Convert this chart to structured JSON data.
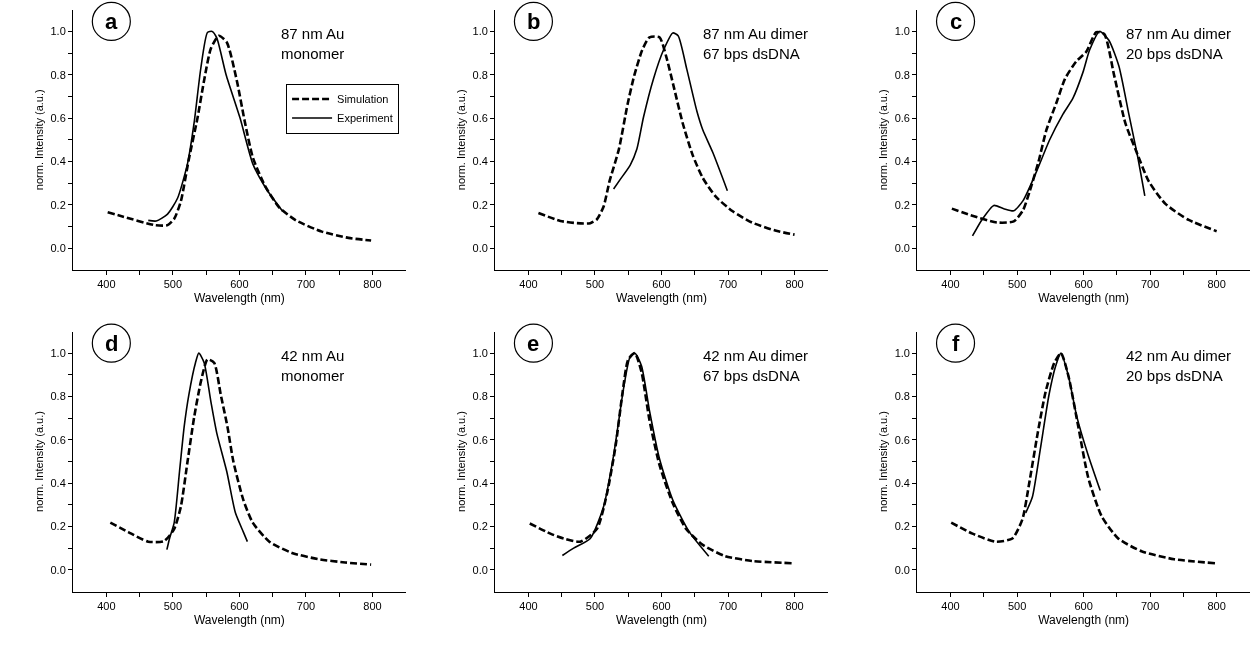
{
  "chart_data": [
    {
      "type": "line",
      "title": "a",
      "annotations": [
        "87 nm Au\nmonomer"
      ],
      "xlabel": "Wavelength (nm)",
      "ylabel": "norm. Intensity (a.u.)",
      "xlim": [
        350,
        850
      ],
      "ylim": [
        -0.1,
        1.1
      ],
      "xticks": [
        400,
        {
          "value": 450,
          "label": null
        },
        500,
        {
          "value": 550,
          "label": null
        },
        600,
        {
          "value": 650,
          "label": null
        },
        700,
        {
          "value": 750,
          "label": null
        },
        800
      ],
      "yticks": [
        {
          "value": 0,
          "label": "0.0"
        },
        {
          "value": 0.1,
          "label": null
        },
        {
          "value": 0.2,
          "label": "0.2"
        },
        {
          "value": 0.3,
          "label": null
        },
        {
          "value": 0.4,
          "label": "0.4"
        },
        {
          "value": 0.5,
          "label": null
        },
        {
          "value": 0.6,
          "label": "0.6"
        },
        {
          "value": 0.7,
          "label": null
        },
        {
          "value": 0.8,
          "label": "0.8"
        },
        {
          "value": 0.9,
          "label": null
        },
        {
          "value": 1.0,
          "label": "1.0"
        }
      ],
      "grid": false,
      "legend": "right",
      "series": [
        {
          "name": "Simulation",
          "color": "#000000",
          "line_style": "dashed",
          "x": [
            402,
            423,
            473,
            492,
            502,
            512,
            524,
            537,
            547,
            557,
            569,
            581,
            596,
            608,
            620,
            638,
            660,
            685,
            724,
            764,
            798
          ],
          "values": [
            0.165,
            0.147,
            0.106,
            0.106,
            0.135,
            0.216,
            0.41,
            0.6,
            0.775,
            0.92,
            0.98,
            0.95,
            0.775,
            0.585,
            0.42,
            0.29,
            0.187,
            0.128,
            0.076,
            0.047,
            0.035
          ]
        },
        {
          "name": "Experiment",
          "color": "#000000",
          "line_style": "solid",
          "x": [
            463,
            475,
            492,
            507,
            522,
            532,
            542,
            552,
            559,
            566,
            580,
            601,
            620,
            640,
            665
          ],
          "values": [
            0.128,
            0.125,
            0.157,
            0.23,
            0.39,
            0.58,
            0.83,
            0.995,
            1.0,
            0.97,
            0.8,
            0.6,
            0.39,
            0.275,
            0.17
          ]
        }
      ]
    },
    {
      "type": "line",
      "title": "b",
      "annotations": [
        "87 nm Au dimer\n67 bps dsDNA"
      ],
      "xlabel": "Wavelength (nm)",
      "ylabel": "norm. Intensity (a.u.)",
      "xlim": [
        350,
        850
      ],
      "ylim": [
        -0.1,
        1.1
      ],
      "xticks": [
        400,
        {
          "value": 450,
          "label": null
        },
        500,
        {
          "value": 550,
          "label": null
        },
        600,
        {
          "value": 650,
          "label": null
        },
        700,
        {
          "value": 750,
          "label": null
        },
        800
      ],
      "yticks": [
        {
          "value": 0,
          "label": "0.0"
        },
        {
          "value": 0.1,
          "label": null
        },
        {
          "value": 0.2,
          "label": "0.2"
        },
        {
          "value": 0.3,
          "label": null
        },
        {
          "value": 0.4,
          "label": "0.4"
        },
        {
          "value": 0.5,
          "label": null
        },
        {
          "value": 0.6,
          "label": "0.6"
        },
        {
          "value": 0.7,
          "label": null
        },
        {
          "value": 0.8,
          "label": "0.8"
        },
        {
          "value": 0.9,
          "label": null
        },
        {
          "value": 1.0,
          "label": "1.0"
        }
      ],
      "grid": false,
      "series": [
        {
          "color": "#000000",
          "line_style": "dashed",
          "x": [
            415,
            448,
            473,
            493,
            503,
            513,
            522,
            536,
            549,
            559,
            571,
            582,
            597,
            607,
            619,
            632,
            647,
            662,
            682,
            707,
            736,
            771,
            800
          ],
          "values": [
            0.162,
            0.125,
            0.115,
            0.115,
            0.133,
            0.192,
            0.31,
            0.457,
            0.664,
            0.796,
            0.914,
            0.973,
            0.973,
            0.885,
            0.737,
            0.575,
            0.428,
            0.324,
            0.236,
            0.17,
            0.118,
            0.081,
            0.062
          ]
        },
        {
          "color": "#000000",
          "line_style": "solid",
          "x": [
            528,
            538,
            553,
            563,
            573,
            588,
            603,
            617,
            625,
            638,
            653,
            662,
            677,
            699
          ],
          "values": [
            0.273,
            0.317,
            0.383,
            0.457,
            0.605,
            0.782,
            0.914,
            0.993,
            0.98,
            0.826,
            0.634,
            0.546,
            0.442,
            0.265
          ]
        }
      ]
    },
    {
      "type": "line",
      "title": "c",
      "annotations": [
        "87 nm Au dimer\n20 bps dsDNA"
      ],
      "xlabel": "Wavelength (nm)",
      "ylabel": "norm. Intensity (a.u.)",
      "xlim": [
        350,
        850
      ],
      "ylim": [
        -0.1,
        1.1
      ],
      "xticks": [
        400,
        {
          "value": 450,
          "label": null
        },
        500,
        {
          "value": 550,
          "label": null
        },
        600,
        {
          "value": 650,
          "label": null
        },
        700,
        {
          "value": 750,
          "label": null
        },
        800
      ],
      "yticks": [
        {
          "value": 0,
          "label": "0.0"
        },
        {
          "value": 0.1,
          "label": null
        },
        {
          "value": 0.2,
          "label": "0.2"
        },
        {
          "value": 0.3,
          "label": null
        },
        {
          "value": 0.4,
          "label": "0.4"
        },
        {
          "value": 0.5,
          "label": null
        },
        {
          "value": 0.6,
          "label": "0.6"
        },
        {
          "value": 0.7,
          "label": null
        },
        {
          "value": 0.8,
          "label": "0.8"
        },
        {
          "value": 0.9,
          "label": null
        },
        {
          "value": 1.0,
          "label": "1.0"
        }
      ],
      "grid": false,
      "series": [
        {
          "color": "#000000",
          "line_style": "dashed",
          "x": [
            402,
            430,
            470,
            495,
            509,
            519,
            532,
            544,
            560,
            572,
            589,
            604,
            619,
            631,
            646,
            663,
            678,
            698,
            723,
            758,
            800
          ],
          "values": [
            0.182,
            0.152,
            0.118,
            0.123,
            0.175,
            0.263,
            0.396,
            0.544,
            0.678,
            0.781,
            0.862,
            0.906,
            0.996,
            0.988,
            0.796,
            0.574,
            0.456,
            0.308,
            0.204,
            0.13,
            0.078
          ]
        },
        {
          "color": "#000000",
          "line_style": "solid",
          "x": [
            433,
            447,
            465,
            480,
            495,
            509,
            529,
            549,
            569,
            584,
            599,
            609,
            624,
            638,
            653,
            668,
            681,
            692
          ],
          "values": [
            0.056,
            0.13,
            0.197,
            0.182,
            0.172,
            0.219,
            0.352,
            0.5,
            0.618,
            0.692,
            0.811,
            0.914,
            1.0,
            0.959,
            0.84,
            0.618,
            0.426,
            0.241
          ]
        }
      ]
    },
    {
      "type": "line",
      "title": "d",
      "annotations": [
        "42 nm Au\nmonomer"
      ],
      "xlabel": "Wavelength (nm)",
      "ylabel": "norm. Intensity (a.u.)",
      "xlim": [
        350,
        850
      ],
      "ylim": [
        -0.1,
        1.1
      ],
      "xticks": [
        400,
        {
          "value": 450,
          "label": null
        },
        500,
        {
          "value": 550,
          "label": null
        },
        600,
        {
          "value": 650,
          "label": null
        },
        700,
        {
          "value": 750,
          "label": null
        },
        800
      ],
      "yticks": [
        {
          "value": 0,
          "label": "0.0"
        },
        {
          "value": 0.1,
          "label": null
        },
        {
          "value": 0.2,
          "label": "0.2"
        },
        {
          "value": 0.3,
          "label": null
        },
        {
          "value": 0.4,
          "label": "0.4"
        },
        {
          "value": 0.5,
          "label": null
        },
        {
          "value": 0.6,
          "label": "0.6"
        },
        {
          "value": 0.7,
          "label": null
        },
        {
          "value": 0.8,
          "label": "0.8"
        },
        {
          "value": 0.9,
          "label": null
        },
        {
          "value": 1.0,
          "label": "1.0"
        }
      ],
      "grid": false,
      "series": [
        {
          "color": "#000000",
          "line_style": "dashed",
          "x": [
            406,
            433,
            463,
            487,
            502,
            512,
            522,
            532,
            542,
            552,
            562,
            572,
            582,
            591,
            606,
            620,
            645,
            679,
            719,
            759,
            798
          ],
          "values": [
            0.218,
            0.174,
            0.13,
            0.133,
            0.189,
            0.292,
            0.499,
            0.705,
            0.867,
            0.971,
            0.956,
            0.808,
            0.661,
            0.499,
            0.322,
            0.218,
            0.13,
            0.078,
            0.049,
            0.034,
            0.024
          ]
        },
        {
          "color": "#000000",
          "line_style": "solid",
          "x": [
            491,
            495,
            502,
            510,
            517,
            524,
            534,
            539,
            547,
            557,
            566,
            581,
            594,
            606,
            612
          ],
          "values": [
            0.093,
            0.145,
            0.218,
            0.454,
            0.661,
            0.808,
            0.956,
            1.0,
            0.956,
            0.779,
            0.631,
            0.454,
            0.263,
            0.174,
            0.13
          ]
        }
      ]
    },
    {
      "type": "line",
      "title": "e",
      "annotations": [
        "42 nm Au dimer\n67 bps dsDNA"
      ],
      "xlabel": "Wavelength (nm)",
      "ylabel": "norm. Intensity (a.u.)",
      "xlim": [
        350,
        850
      ],
      "ylim": [
        -0.1,
        1.1
      ],
      "xticks": [
        400,
        {
          "value": 450,
          "label": null
        },
        500,
        {
          "value": 550,
          "label": null
        },
        600,
        {
          "value": 650,
          "label": null
        },
        700,
        {
          "value": 750,
          "label": null
        },
        800
      ],
      "yticks": [
        {
          "value": 0,
          "label": "0.0"
        },
        {
          "value": 0.1,
          "label": null
        },
        {
          "value": 0.2,
          "label": "0.2"
        },
        {
          "value": 0.3,
          "label": null
        },
        {
          "value": 0.4,
          "label": "0.4"
        },
        {
          "value": 0.5,
          "label": null
        },
        {
          "value": 0.6,
          "label": "0.6"
        },
        {
          "value": 0.7,
          "label": null
        },
        {
          "value": 0.8,
          "label": "0.8"
        },
        {
          "value": 0.9,
          "label": null
        },
        {
          "value": 1.0,
          "label": "1.0"
        }
      ],
      "grid": false,
      "series": [
        {
          "color": "#000000",
          "line_style": "dashed",
          "x": [
            402,
            433,
            453,
            478,
            503,
            518,
            531,
            541,
            550,
            560,
            570,
            582,
            597,
            617,
            637,
            662,
            696,
            736,
            800
          ],
          "values": [
            0.214,
            0.167,
            0.145,
            0.13,
            0.189,
            0.351,
            0.572,
            0.808,
            0.971,
            1.0,
            0.912,
            0.69,
            0.484,
            0.307,
            0.189,
            0.115,
            0.063,
            0.041,
            0.03
          ]
        },
        {
          "color": "#000000",
          "line_style": "solid",
          "x": [
            451,
            468,
            493,
            513,
            528,
            543,
            553,
            560,
            570,
            582,
            597,
            617,
            642,
            671
          ],
          "values": [
            0.066,
            0.1,
            0.145,
            0.292,
            0.528,
            0.838,
            0.985,
            1.0,
            0.941,
            0.734,
            0.513,
            0.322,
            0.174,
            0.063
          ]
        }
      ]
    },
    {
      "type": "line",
      "title": "f",
      "annotations": [
        "42 nm Au dimer\n20 bps dsDNA"
      ],
      "xlabel": "Wavelength (nm)",
      "ylabel": "norm. Intensity (a.u.)",
      "xlim": [
        350,
        850
      ],
      "ylim": [
        -0.1,
        1.1
      ],
      "xticks": [
        400,
        {
          "value": 450,
          "label": null
        },
        500,
        {
          "value": 550,
          "label": null
        },
        600,
        {
          "value": 650,
          "label": null
        },
        700,
        {
          "value": 750,
          "label": null
        },
        800
      ],
      "yticks": [
        {
          "value": 0,
          "label": "0.0"
        },
        {
          "value": 0.1,
          "label": null
        },
        {
          "value": 0.2,
          "label": "0.2"
        },
        {
          "value": 0.3,
          "label": null
        },
        {
          "value": 0.4,
          "label": "0.4"
        },
        {
          "value": 0.5,
          "label": null
        },
        {
          "value": 0.6,
          "label": "0.6"
        },
        {
          "value": 0.7,
          "label": null
        },
        {
          "value": 0.8,
          "label": "0.8"
        },
        {
          "value": 0.9,
          "label": null
        },
        {
          "value": 1.0,
          "label": "1.0"
        }
      ],
      "grid": false,
      "series": [
        {
          "color": "#000000",
          "line_style": "dashed",
          "x": [
            401,
            433,
            468,
            493,
            508,
            518,
            531,
            543,
            556,
            566,
            577,
            592,
            607,
            627,
            652,
            687,
            736,
            800
          ],
          "values": [
            0.218,
            0.167,
            0.13,
            0.145,
            0.233,
            0.395,
            0.631,
            0.823,
            0.956,
            1.0,
            0.897,
            0.661,
            0.425,
            0.248,
            0.145,
            0.086,
            0.049,
            0.03
          ]
        },
        {
          "color": "#000000",
          "line_style": "solid",
          "x": [
            513,
            523,
            535,
            548,
            558,
            566,
            577,
            590,
            607,
            625
          ],
          "values": [
            0.263,
            0.336,
            0.558,
            0.808,
            0.941,
            1.0,
            0.897,
            0.705,
            0.528,
            0.366
          ]
        }
      ]
    }
  ]
}
